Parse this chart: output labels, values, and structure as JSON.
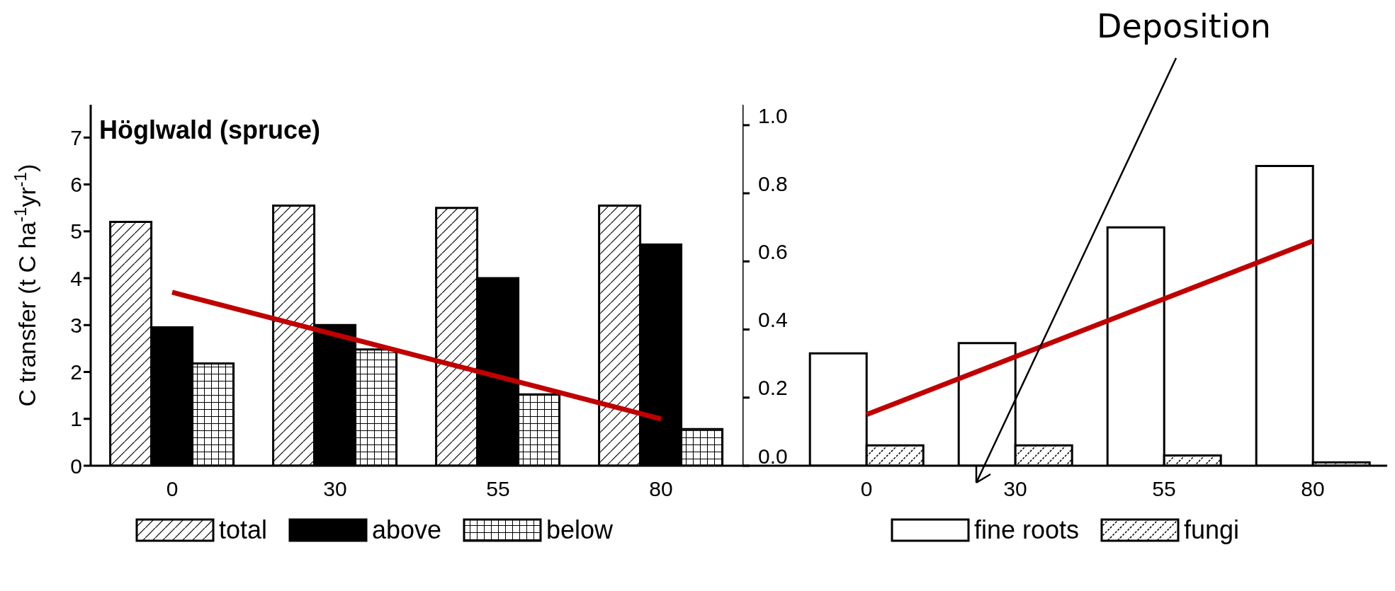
{
  "chart_data": [
    {
      "type": "bar",
      "title": "Höglwald (spruce)",
      "ylabel": "C transfer (t C ha$^{-1}$yr$^{-1}$)",
      "categories": [
        "0",
        "30",
        "55",
        "80"
      ],
      "series": [
        {
          "name": "total",
          "color": "#000000",
          "values": [
            5.2,
            5.55,
            5.5,
            5.55
          ]
        },
        {
          "name": "above",
          "color": "#000000",
          "values": [
            2.95,
            3.0,
            4.0,
            4.72
          ]
        },
        {
          "name": "below",
          "color": "#000000",
          "values": [
            2.18,
            2.48,
            1.52,
            0.78
          ]
        },
        {
          "type": "line",
          "color": "#c00000",
          "values": [
            3.7,
            2.8,
            1.9,
            1.0
          ]
        }
      ],
      "ylim": [
        0,
        7.7
      ],
      "yticks": [
        0,
        1,
        2,
        3,
        4,
        5,
        6,
        7
      ],
      "legend": "bottom"
    },
    {
      "type": "bar",
      "categories": [
        "0",
        "30",
        "55",
        "80"
      ],
      "series": [
        {
          "name": "fine roots",
          "color": "#000000",
          "values": [
            0.33,
            0.36,
            0.7,
            0.88
          ]
        },
        {
          "name": "fungi",
          "color": "#000000",
          "values": [
            0.06,
            0.06,
            0.03,
            0.01
          ]
        },
        {
          "type": "line",
          "color": "#c00000",
          "values": [
            0.15,
            0.32,
            0.49,
            0.66
          ]
        }
      ],
      "ylim": [
        0,
        1.06
      ],
      "yticks": [
        {
          "value": 0,
          "label": "0.0"
        },
        {
          "value": 0.2,
          "label": "0.2"
        },
        {
          "value": 0.4,
          "label": "0.4"
        },
        {
          "value": 0.6,
          "label": "0.6"
        },
        {
          "value": 0.8,
          "label": "0.8"
        },
        {
          "value": 1,
          "label": "1.0"
        }
      ],
      "legend": "bottom",
      "annotations": [
        "Deposition"
      ]
    }
  ]
}
